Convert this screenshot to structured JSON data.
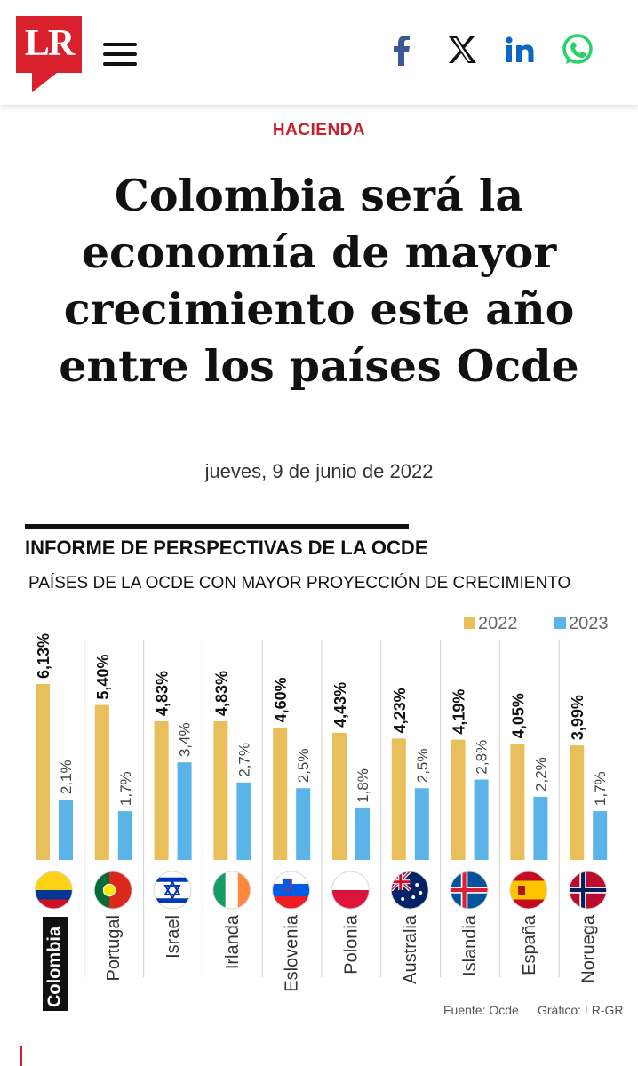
{
  "header": {
    "logo_text": "LR",
    "social": [
      "facebook-icon",
      "x-icon",
      "linkedin-icon",
      "whatsapp-icon"
    ],
    "colors": {
      "brand": "#d9202d",
      "facebook": "#3b5998",
      "linkedin": "#0a66c2",
      "whatsapp": "#25d366"
    }
  },
  "article": {
    "section": "HACIENDA",
    "title": "Colombia será la economía de mayor crecimiento este año entre los países Ocde",
    "date": "jueves, 9 de junio de 2022"
  },
  "infographic": {
    "title": "INFORME DE PERSPECTIVAS DE LA OCDE",
    "subtitle": "PAÍSES DE LA OCDE CON MAYOR PROYECCIÓN DE CRECIMIENTO",
    "source": "Fuente: Ocde",
    "credit": "Gráfico: LR-GR"
  },
  "chart_data": {
    "type": "bar",
    "title": "PAÍSES DE LA OCDE CON MAYOR PROYECCIÓN DE CRECIMIENTO",
    "categories": [
      "Colombia",
      "Portugal",
      "Israel",
      "Irlanda",
      "Eslovenia",
      "Polonia",
      "Australia",
      "Islandia",
      "España",
      "Noruega"
    ],
    "series": [
      {
        "name": "2022",
        "color": "#e8bf5a",
        "values": [
          6.13,
          5.4,
          4.83,
          4.83,
          4.6,
          4.43,
          4.23,
          4.19,
          4.05,
          3.99
        ],
        "labels": [
          "6,13%",
          "5,40%",
          "4,83%",
          "4,83%",
          "4,60%",
          "4,43%",
          "4,23%",
          "4,19%",
          "4,05%",
          "3,99%"
        ]
      },
      {
        "name": "2023",
        "color": "#5ab4e8",
        "values": [
          2.1,
          1.7,
          3.4,
          2.7,
          2.5,
          1.8,
          2.5,
          2.8,
          2.2,
          1.7
        ],
        "labels": [
          "2,1%",
          "1,7%",
          "3,4%",
          "2,7%",
          "2,5%",
          "1,8%",
          "2,5%",
          "2,8%",
          "2,2%",
          "1,7%"
        ]
      }
    ],
    "highlight": "Colombia",
    "legend": [
      "2022",
      "2023"
    ],
    "legend_position": "top-right",
    "ylim": [
      0,
      7
    ],
    "xlabel": "",
    "ylabel": ""
  }
}
